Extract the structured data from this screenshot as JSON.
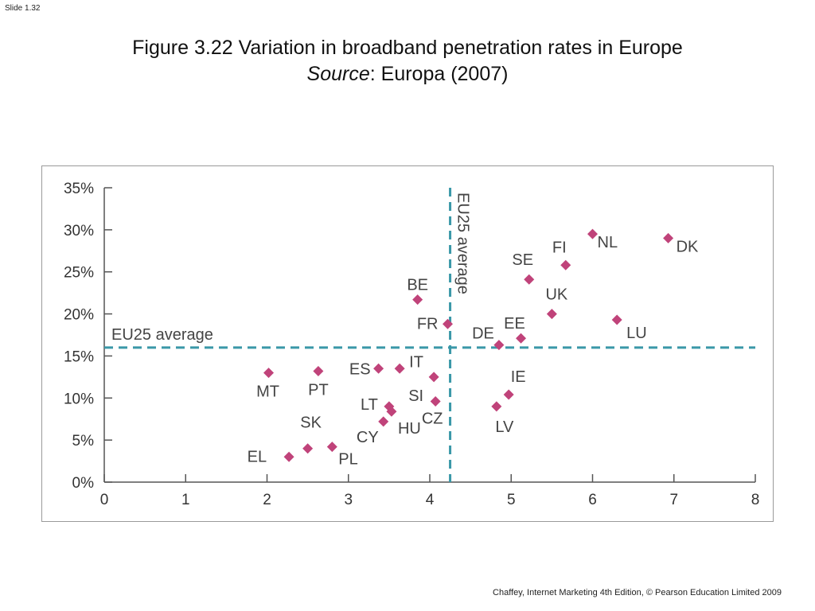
{
  "slide": {
    "number_label": "Slide 1.32"
  },
  "title": {
    "line1": "Figure 3.22  Variation in broadband penetration rates in Europe",
    "source_label": "Source",
    "source_rest": ": Europa (2007)"
  },
  "footer": {
    "text": "Chaffey, Internet Marketing 4th Edition, © Pearson Education Limited 2009"
  },
  "chart_data": {
    "type": "scatter",
    "title": "",
    "xlabel": "",
    "ylabel": "",
    "xlim": [
      0,
      8
    ],
    "ylim": [
      0,
      35
    ],
    "x_ticks": [
      0,
      1,
      2,
      3,
      4,
      5,
      6,
      7,
      8
    ],
    "x_tick_labels": [
      "0",
      "1",
      "2",
      "3",
      "4",
      "5",
      "6",
      "7",
      "8"
    ],
    "y_ticks": [
      0,
      5,
      10,
      15,
      20,
      25,
      30,
      35
    ],
    "y_tick_labels": [
      "0%",
      "5%",
      "10%",
      "15%",
      "20%",
      "25%",
      "30%",
      "35%"
    ],
    "grid": false,
    "marker": "diamond",
    "marker_color": "#c0437a",
    "reference_lines": [
      {
        "orientation": "horizontal",
        "value": 16,
        "label": "EU25 average",
        "color": "#3a98a8"
      },
      {
        "orientation": "vertical",
        "value": 4.25,
        "label": "EU25 average",
        "color": "#3a98a8"
      }
    ],
    "points": [
      {
        "label": "EL",
        "x": 2.27,
        "y": 3.0
      },
      {
        "label": "SK",
        "x": 2.5,
        "y": 4.0
      },
      {
        "label": "PL",
        "x": 2.8,
        "y": 4.2
      },
      {
        "label": "MT",
        "x": 2.02,
        "y": 13.0
      },
      {
        "label": "PT",
        "x": 2.63,
        "y": 13.2
      },
      {
        "label": "ES",
        "x": 3.37,
        "y": 13.5
      },
      {
        "label": "IT",
        "x": 3.63,
        "y": 13.5
      },
      {
        "label": "SI",
        "x": 4.05,
        "y": 12.5
      },
      {
        "label": "LT",
        "x": 3.5,
        "y": 9.0
      },
      {
        "label": "HU",
        "x": 3.53,
        "y": 8.4
      },
      {
        "label": "CY",
        "x": 3.43,
        "y": 7.2
      },
      {
        "label": "CZ",
        "x": 4.07,
        "y": 9.6
      },
      {
        "label": "BE",
        "x": 3.85,
        "y": 21.7
      },
      {
        "label": "FR",
        "x": 4.22,
        "y": 18.8
      },
      {
        "label": "DE",
        "x": 4.85,
        "y": 16.3
      },
      {
        "label": "EE",
        "x": 5.12,
        "y": 17.1
      },
      {
        "label": "LV",
        "x": 4.82,
        "y": 9.0
      },
      {
        "label": "IE",
        "x": 4.97,
        "y": 10.4
      },
      {
        "label": "SE",
        "x": 5.22,
        "y": 24.1
      },
      {
        "label": "UK",
        "x": 5.5,
        "y": 20.0
      },
      {
        "label": "FI",
        "x": 5.67,
        "y": 25.8
      },
      {
        "label": "NL",
        "x": 6.0,
        "y": 29.5
      },
      {
        "label": "LU",
        "x": 6.3,
        "y": 19.3
      },
      {
        "label": "DK",
        "x": 6.93,
        "y": 29.0
      }
    ]
  }
}
